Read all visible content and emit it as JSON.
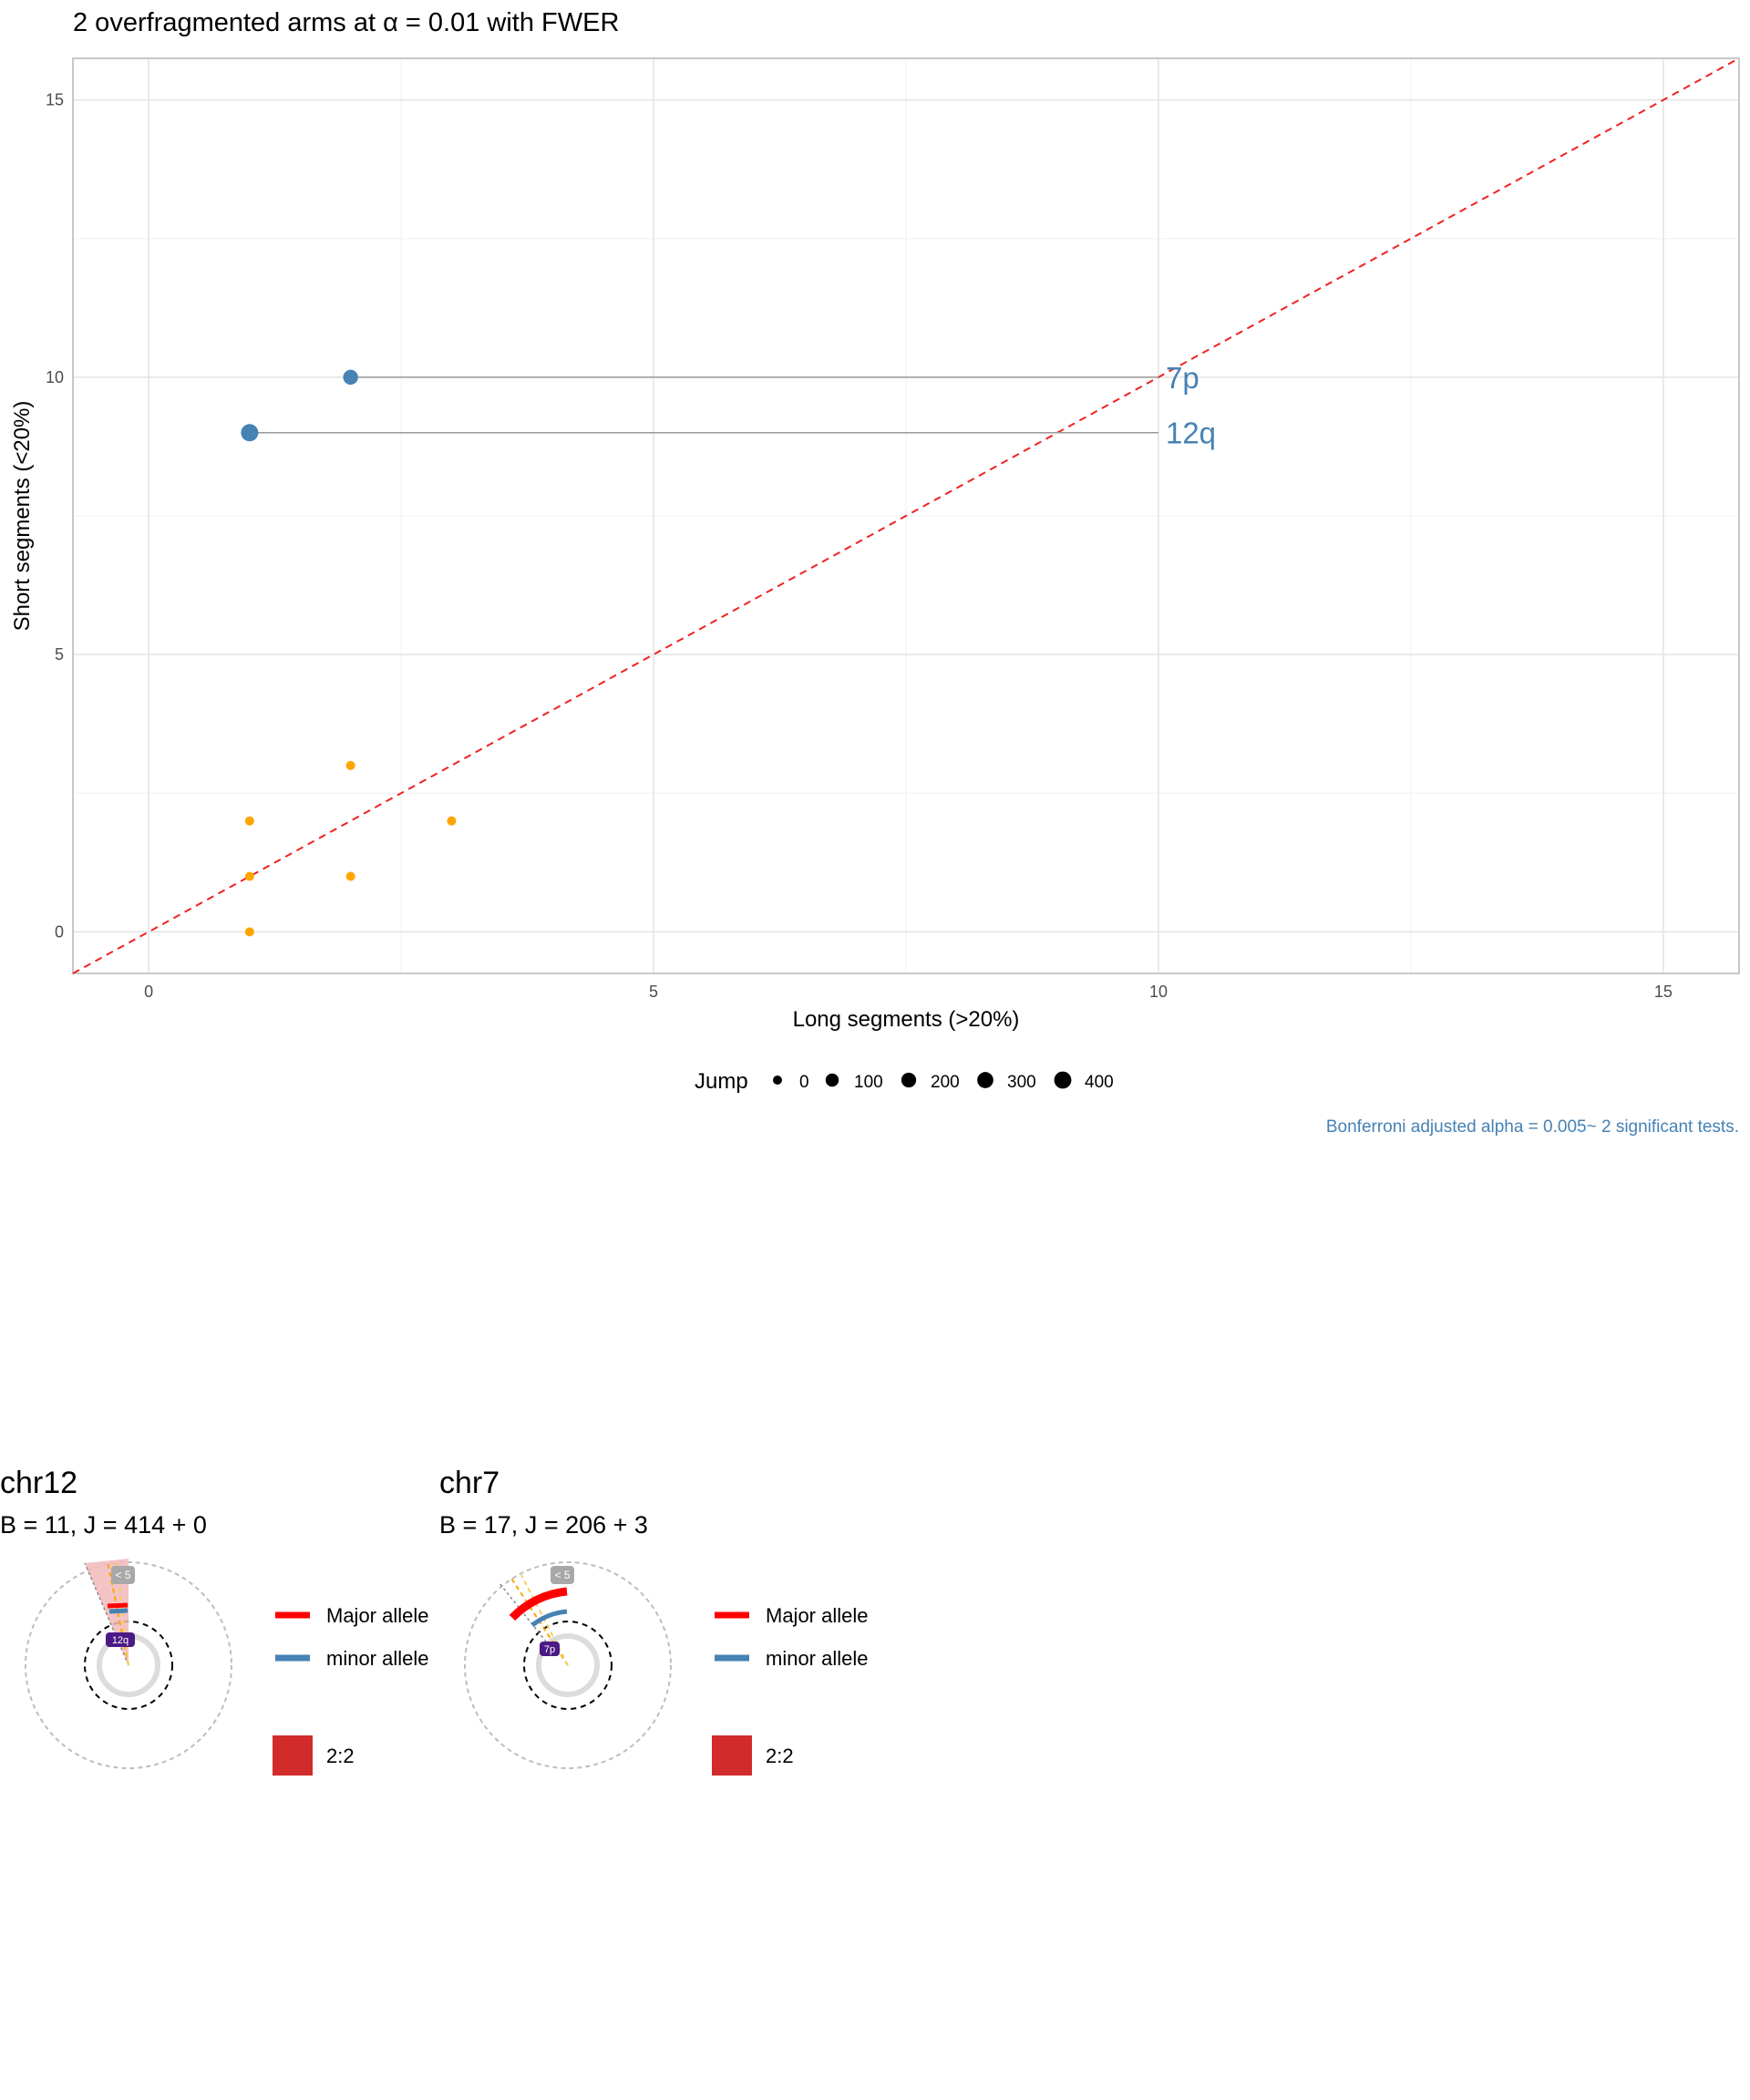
{
  "chart_data": [
    {
      "type": "scatter",
      "title": "2 overfragmented arms at α = 0.01 with FWER",
      "xlabel": "Long segments (>20%)",
      "ylabel": "Short segments (<20%)",
      "xlim": [
        -0.75,
        15.75
      ],
      "ylim": [
        -0.75,
        15.75
      ],
      "x_ticks": [
        0,
        5,
        10,
        15
      ],
      "y_ticks": [
        0,
        5,
        10,
        15
      ],
      "grid": true,
      "diagonal": {
        "style": "dashed",
        "color": "#ee2222"
      },
      "series": [
        {
          "name": "",
          "color": "#4682b4",
          "points": [
            {
              "x": 2,
              "y": 10,
              "jump": 209,
              "label": "7p"
            },
            {
              "x": 1,
              "y": 9,
              "jump": 414,
              "label": "12q"
            }
          ]
        },
        {
          "name": "",
          "color": "#ffa500",
          "points": [
            {
              "x": 2,
              "y": 3
            },
            {
              "x": 1,
              "y": 2
            },
            {
              "x": 3,
              "y": 2
            },
            {
              "x": 1,
              "y": 1
            },
            {
              "x": 2,
              "y": 1
            },
            {
              "x": 1,
              "y": 0
            }
          ]
        }
      ],
      "label_x": 10,
      "legend": {
        "title": "Jump",
        "placement": "bottom",
        "entries": [
          "0",
          "100",
          "200",
          "300",
          "400"
        ]
      },
      "caption": "Bonferroni adjusted alpha = 0.005~ 2 significant tests."
    },
    {
      "type": "other",
      "title": "chr12",
      "subtitle": "B = 11, J = 414 + 0",
      "badge_outer": "< 5",
      "badge_inner": "12q",
      "legend": {
        "major": "Major allele",
        "minor": "minor allele",
        "karyotype": "2:2"
      }
    },
    {
      "type": "other",
      "title": "chr7",
      "subtitle": "B = 17, J = 206 + 3",
      "badge_outer": "< 5",
      "badge_inner": "7p",
      "legend": {
        "major": "Major allele",
        "minor": "minor allele",
        "karyotype": "2:2"
      }
    }
  ],
  "colors": {
    "significant": "#4682b4",
    "other": "#ffa500",
    "diagonal": "#ee2222",
    "major": "#ff0000",
    "minor": "#4682b4",
    "karyotype": "#d22b2b",
    "badge_inner": "#4b1a86",
    "badge_outer": "#a8a8a8"
  }
}
